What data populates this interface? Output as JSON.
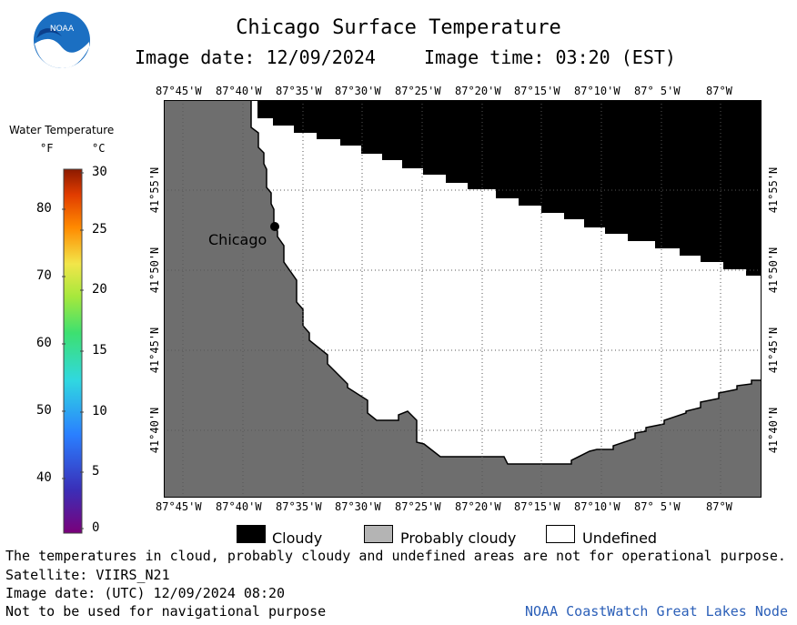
{
  "header": {
    "title": "Chicago Surface Temperature",
    "image_date": "Image date: 12/09/2024",
    "image_time": "Image time: 03:20 (EST)"
  },
  "logo": {
    "text": "NOAA",
    "icon": "noaa-logo-icon"
  },
  "map": {
    "city_label": "Chicago",
    "lon_labels": [
      "87°45'W",
      "87°40'W",
      "87°35'W",
      "87°30'W",
      "87°25'W",
      "87°20'W",
      "87°15'W",
      "87°10'W",
      "87° 5'W",
      "87°W"
    ],
    "lat_labels": [
      "41°55'N",
      "41°50'N",
      "41°45'N",
      "41°40'N"
    ],
    "colors": {
      "land": "#6e6e6e",
      "cloudy": "#000000",
      "undefined": "#ffffff",
      "probably_cloudy": "#b4b4b4"
    }
  },
  "colorbar": {
    "title": "Water Temperature",
    "unit_f": "°F",
    "unit_c": "°C",
    "f_ticks": [
      "80",
      "70",
      "60",
      "50",
      "40"
    ],
    "c_ticks": [
      "30",
      "25",
      "20",
      "15",
      "10",
      "5",
      "0"
    ]
  },
  "legend": {
    "items": [
      {
        "label": "Cloudy",
        "color": "#000000"
      },
      {
        "label": "Probably cloudy",
        "color": "#b4b4b4"
      },
      {
        "label": "Undefined",
        "color": "#ffffff"
      }
    ]
  },
  "footer": {
    "note": "The temperatures in cloud, probably cloudy and undefined areas are not for operational purpose.",
    "satellite": "Satellite: VIIRS_N21",
    "utc_date": "Image date: (UTC) 12/09/2024  08:20",
    "nav_warning": "Not to be used for navigational purpose",
    "credit": "NOAA CoastWatch Great Lakes Node"
  }
}
